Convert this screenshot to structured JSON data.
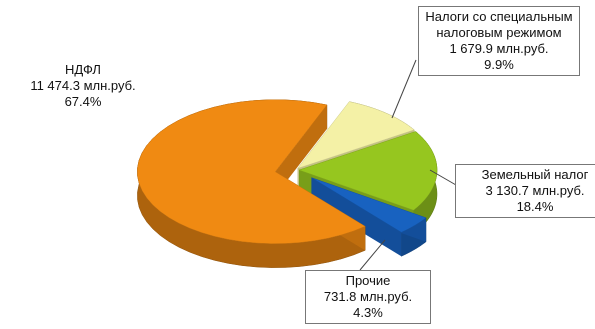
{
  "chart_data": {
    "type": "pie",
    "categories": [
      "Налоги со специальным налоговым режимом",
      "Земельный налог",
      "Прочие",
      "НДФЛ"
    ],
    "amount_labels": [
      "1 679.9 млн.руб.",
      "3 130.7 млн.руб.",
      "731.8 млн.руб.",
      "11 474.3 млн.руб."
    ],
    "values": [
      9.9,
      18.4,
      4.3,
      67.4
    ],
    "value_labels": [
      "9.9%",
      "18.4%",
      "4.3%",
      "67.4%"
    ],
    "colors": [
      "#f4f1a6",
      "#96c61f",
      "#1862c0",
      "#f08a12"
    ]
  }
}
